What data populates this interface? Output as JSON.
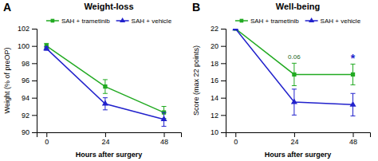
{
  "chart_data": [
    {
      "type": "line",
      "panel_label": "A",
      "title": "Weight-loss",
      "x_label": "Hours after surgery",
      "y_label": "Weight (% of preOP)",
      "x": [
        0,
        24,
        48
      ],
      "xlim": [
        -4,
        55
      ],
      "xticks": [
        0,
        24,
        48
      ],
      "ylim": [
        90,
        102
      ],
      "yticks": [
        90,
        92,
        94,
        96,
        98,
        100,
        102
      ],
      "grid": false,
      "legend": "top",
      "series": [
        {
          "name": "SAH + trametinib",
          "color": "#22aa22",
          "marker": "square",
          "values": [
            100.0,
            95.3,
            92.3
          ],
          "errors": [
            0.3,
            0.8,
            0.7
          ]
        },
        {
          "name": "SAH + vehicle",
          "color": "#2222cc",
          "marker": "triangle",
          "values": [
            99.7,
            93.3,
            91.5
          ],
          "errors": [
            0.2,
            0.7,
            0.8
          ]
        }
      ]
    },
    {
      "type": "line",
      "panel_label": "B",
      "title": "Well-being",
      "x_label": "Hours after surgery",
      "y_label": "Score (max 22 points)",
      "x": [
        0,
        24,
        48
      ],
      "xlim": [
        -4,
        55
      ],
      "xticks": [
        0,
        24,
        48
      ],
      "ylim": [
        10,
        22
      ],
      "yticks": [
        10,
        12,
        14,
        16,
        18,
        20,
        22
      ],
      "grid": false,
      "legend": "top",
      "series": [
        {
          "name": "SAH + trametinib",
          "color": "#22aa22",
          "marker": "square",
          "values": [
            22.0,
            16.7,
            16.7
          ],
          "errors": [
            0.0,
            1.3,
            1.2
          ]
        },
        {
          "name": "SAH + vehicle",
          "color": "#2222cc",
          "marker": "triangle",
          "values": [
            22.0,
            13.5,
            13.2
          ],
          "errors": [
            0.0,
            1.5,
            1.3
          ]
        }
      ],
      "annotations": [
        {
          "text": "0.06",
          "x": 24,
          "y": 18.3,
          "color": "#226622"
        },
        {
          "text": "*",
          "x": 48,
          "y": 18.5,
          "color": "#2222cc"
        }
      ]
    }
  ]
}
